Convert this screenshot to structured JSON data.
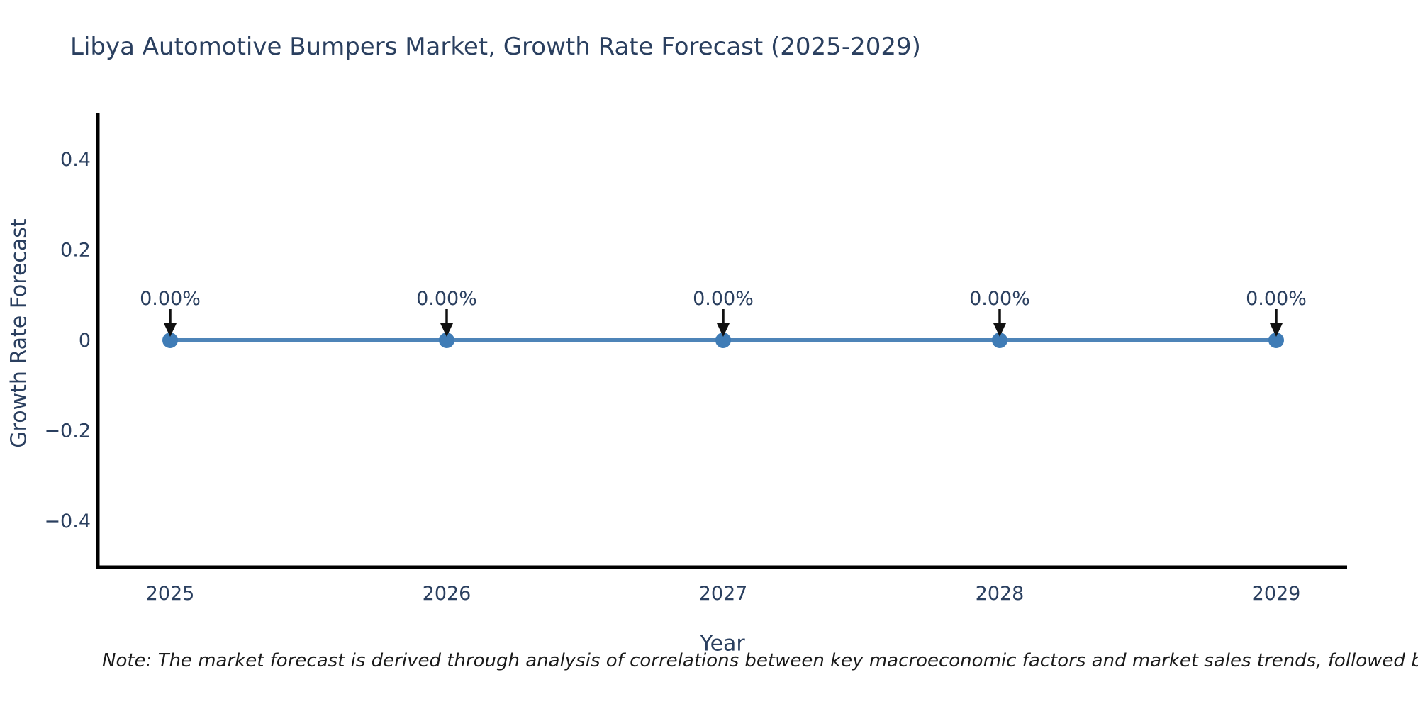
{
  "title": "Libya Automotive Bumpers Market, Growth Rate Forecast (2025-2029)",
  "note": "Note: The market forecast is derived through analysis of correlations between key macroeconomic factors and market sales trends, followed by predictive modeling to project future sa",
  "chart_data": {
    "type": "line",
    "title": "Libya Automotive Bumpers Market, Growth Rate Forecast (2025-2029)",
    "xlabel": "Year",
    "ylabel": "Growth Rate Forecast",
    "x": [
      "2025",
      "2026",
      "2027",
      "2028",
      "2029"
    ],
    "series": [
      {
        "name": "Growth Rate Forecast",
        "values": [
          0,
          0,
          0,
          0,
          0
        ],
        "point_labels": [
          "0.00%",
          "0.00%",
          "0.00%",
          "0.00%",
          "0.00%"
        ]
      }
    ],
    "ylim": [
      -0.5,
      0.5
    ],
    "yticks": [
      {
        "label": "0.4",
        "value": 0.4
      },
      {
        "label": "0.2",
        "value": 0.2
      },
      {
        "label": "0",
        "value": 0
      },
      {
        "label": "−0.2",
        "value": -0.2
      },
      {
        "label": "−0.4",
        "value": -0.4
      }
    ],
    "grid": false,
    "legend_position": "none",
    "colors": {
      "line": "#4e84b8",
      "marker": "#3f7cb6",
      "axis": "#000000",
      "text": "#2a3f5f",
      "annotation_arrow": "#111111",
      "background": "#ffffff"
    }
  }
}
